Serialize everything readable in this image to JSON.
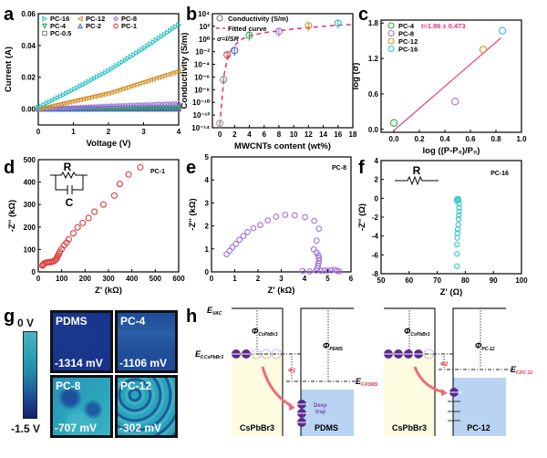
{
  "chart_data": [
    {
      "panel": "a",
      "type": "line",
      "title": "",
      "xlabel": "Voltage (V)",
      "ylabel": "Current (A)",
      "xlim": [
        0,
        4
      ],
      "ylim": [
        -0.01,
        0.06
      ],
      "xticks": [
        "0",
        "1",
        "2",
        "3",
        "4"
      ],
      "yticks": [
        "0.00",
        "0.02",
        "0.04",
        "0.06"
      ],
      "legend": "top-left",
      "series": [
        {
          "name": "PC-16",
          "marker": "triangle-right",
          "color": "#2ec4c4",
          "x": [
            0,
            1,
            2,
            3,
            4
          ],
          "y": [
            0.001,
            0.012,
            0.024,
            0.038,
            0.053
          ]
        },
        {
          "name": "PC-12",
          "marker": "triangle-left",
          "color": "#d4922a",
          "x": [
            0,
            1,
            2,
            3,
            4
          ],
          "y": [
            0.0,
            0.005,
            0.01,
            0.017,
            0.024
          ]
        },
        {
          "name": "PC-8",
          "marker": "diamond",
          "color": "#a070e0",
          "x": [
            0,
            1,
            2,
            3,
            4
          ],
          "y": [
            0.0,
            0.001,
            0.002,
            0.0028,
            0.0035
          ]
        },
        {
          "name": "PC-4",
          "marker": "triangle-down",
          "color": "#2aa84a",
          "x": [
            0,
            1,
            2,
            3,
            4
          ],
          "y": [
            0.0,
            0.0003,
            0.0006,
            0.0009,
            0.0012
          ]
        },
        {
          "name": "PC-2",
          "marker": "triangle-up",
          "color": "#3a6ee0",
          "x": [
            0,
            1,
            2,
            3,
            4
          ],
          "y": [
            0.0,
            0.0001,
            0.0002,
            0.0003,
            0.0004
          ]
        },
        {
          "name": "PC-1",
          "marker": "circle",
          "color": "#e03a3a",
          "x": [
            0,
            1,
            2,
            3,
            4
          ],
          "y": [
            0.0,
            0.0,
            0.0,
            0.0,
            0.0001
          ]
        },
        {
          "name": "PC-0.5",
          "marker": "square",
          "color": "#888888",
          "x": [
            0,
            1,
            2,
            3,
            4
          ],
          "y": [
            0.0,
            0.0,
            0.0,
            0.0,
            0.0
          ]
        }
      ]
    },
    {
      "panel": "b",
      "type": "scatter",
      "xlabel": "MWCNTs content (wt%)",
      "ylabel": "Conductivity (S/m)",
      "xlim": [
        -1,
        18
      ],
      "ylim_log10": [
        -14,
        4
      ],
      "xticks": [
        "0",
        "2",
        "4",
        "6",
        "8",
        "10",
        "12",
        "14",
        "16",
        "18"
      ],
      "yticks": [
        "10⁻¹⁴",
        "10⁻¹²",
        "10⁻¹⁰",
        "10⁻⁸",
        "10⁻⁶",
        "10⁻⁴",
        "10⁻²",
        "10⁰",
        "10²",
        "10⁴"
      ],
      "legend": "top-left",
      "legend_entries": [
        "Conductivity (S/m)",
        "Fitted curve"
      ],
      "annotation": "σ=l/SR",
      "points": [
        {
          "x": 0,
          "log10_y": -13.3,
          "color": "#999999"
        },
        {
          "x": 0.5,
          "log10_y": -6.4,
          "color": "#888888"
        },
        {
          "x": 1,
          "log10_y": -2.5,
          "color": "#e03a3a"
        },
        {
          "x": 2,
          "log10_y": -1.8,
          "color": "#3a6ee0"
        },
        {
          "x": 4,
          "log10_y": 0.6,
          "color": "#2aa84a"
        },
        {
          "x": 8,
          "log10_y": 1.2,
          "color": "#a070e0"
        },
        {
          "x": 12,
          "log10_y": 2.1,
          "color": "#d4922a"
        },
        {
          "x": 16,
          "log10_y": 2.5,
          "color": "#2ec4c4"
        }
      ],
      "fit": {
        "color": "#e83a7a",
        "x": [
          0,
          0.3,
          0.6,
          1,
          1.5,
          2,
          3,
          4,
          6,
          8,
          10,
          12,
          14,
          16,
          18
        ],
        "log10_y": [
          -13.5,
          -9.5,
          -5.5,
          -3.2,
          -1.8,
          -1.0,
          0.0,
          0.5,
          1.0,
          1.3,
          1.6,
          1.8,
          2.0,
          2.2,
          2.3
        ]
      }
    },
    {
      "panel": "c",
      "type": "scatter",
      "xlabel": "log ((P-P0)/P0)",
      "ylabel": "log (σ)",
      "xlim": [
        -0.1,
        1.0
      ],
      "ylim": [
        -0.05,
        1.85
      ],
      "xticks": [
        "0.0",
        "0.2",
        "0.4",
        "0.6",
        "0.8",
        "1.0"
      ],
      "yticks": [
        "0.0",
        "0.6",
        "1.2",
        "1.8"
      ],
      "legend": "top-left",
      "annotation": "t=1.86 ± 0.473",
      "points": [
        {
          "name": "PC-4",
          "x": 0.0,
          "y": 0.11,
          "color": "#2aa84a"
        },
        {
          "name": "PC-8",
          "x": 0.48,
          "y": 0.47,
          "color": "#a070e0"
        },
        {
          "name": "PC-12",
          "x": 0.7,
          "y": 1.35,
          "color": "#d4922a"
        },
        {
          "name": "PC-16",
          "x": 0.85,
          "y": 1.67,
          "color": "#2ec4c4"
        }
      ],
      "fit": {
        "color": "#e83a7a",
        "x": [
          0.0,
          0.84
        ],
        "y": [
          -0.02,
          1.55
        ]
      }
    },
    {
      "panel": "d",
      "type": "scatter",
      "xlabel": "Z' (kΩ)",
      "ylabel": "-Z'' (kΩ)",
      "xlim": [
        0,
        600
      ],
      "ylim": [
        0,
        500
      ],
      "xticks": [
        "0",
        "100",
        "200",
        "300",
        "400",
        "500",
        "600"
      ],
      "yticks": [
        "0",
        "100",
        "200",
        "300",
        "400",
        "500"
      ],
      "sample": "PC-1",
      "circuit": {
        "R": "R",
        "C": "C"
      },
      "color": "#e03a3a",
      "points": [
        [
          18,
          28
        ],
        [
          20,
          32
        ],
        [
          24,
          36
        ],
        [
          30,
          40
        ],
        [
          38,
          42
        ],
        [
          46,
          43
        ],
        [
          54,
          44
        ],
        [
          62,
          46
        ],
        [
          70,
          50
        ],
        [
          76,
          56
        ],
        [
          80,
          64
        ],
        [
          84,
          72
        ],
        [
          88,
          80
        ],
        [
          92,
          90
        ],
        [
          100,
          102
        ],
        [
          110,
          118
        ],
        [
          120,
          130
        ],
        [
          130,
          145
        ],
        [
          150,
          172
        ],
        [
          168,
          198
        ],
        [
          190,
          218
        ],
        [
          215,
          240
        ],
        [
          240,
          268
        ],
        [
          278,
          300
        ],
        [
          325,
          340
        ],
        [
          348,
          392
        ],
        [
          386,
          434
        ],
        [
          436,
          466
        ]
      ]
    },
    {
      "panel": "e",
      "type": "scatter",
      "xlabel": "Z' (kΩ)",
      "ylabel": "-Z'' (kΩ)",
      "xlim": [
        0,
        6
      ],
      "ylim": [
        0,
        5
      ],
      "xticks": [
        "0",
        "1",
        "2",
        "3",
        "4",
        "5",
        "6"
      ],
      "yticks": [
        "0",
        "1",
        "2",
        "3",
        "4",
        "5"
      ],
      "sample": "PC-8",
      "color": "#a070e0",
      "points": [
        [
          0.65,
          0.77
        ],
        [
          0.78,
          0.92
        ],
        [
          0.9,
          1.07
        ],
        [
          1.05,
          1.22
        ],
        [
          1.2,
          1.4
        ],
        [
          1.37,
          1.56
        ],
        [
          1.55,
          1.73
        ],
        [
          1.8,
          1.9
        ],
        [
          2.1,
          2.04
        ],
        [
          2.42,
          2.24
        ],
        [
          2.78,
          2.4
        ],
        [
          3.17,
          2.48
        ],
        [
          3.58,
          2.46
        ],
        [
          4.02,
          2.38
        ],
        [
          4.42,
          2.22
        ],
        [
          4.62,
          1.88
        ],
        [
          4.52,
          1.36
        ],
        [
          4.4,
          0.98
        ],
        [
          4.52,
          0.84
        ],
        [
          4.6,
          0.72
        ],
        [
          4.62,
          0.6
        ],
        [
          4.62,
          0.48
        ],
        [
          4.6,
          0.36
        ],
        [
          4.58,
          0.25
        ],
        [
          4.55,
          0.15
        ],
        [
          4.5,
          0.06
        ],
        [
          3.92,
          0.04
        ],
        [
          4.22,
          0.02
        ],
        [
          4.7,
          0.05
        ],
        [
          4.85,
          0.06
        ],
        [
          5.0,
          0.06
        ],
        [
          5.15,
          0.07
        ],
        [
          5.3,
          0.09
        ],
        [
          5.4,
          0.05
        ],
        [
          5.5,
          0.02
        ]
      ]
    },
    {
      "panel": "f",
      "type": "scatter",
      "xlabel": "Z' (Ω)",
      "ylabel": "-Z'' (Ω)",
      "xlim": [
        50,
        100
      ],
      "ylim": [
        -8,
        4
      ],
      "xticks": [
        "50",
        "60",
        "70",
        "80",
        "90",
        "100"
      ],
      "yticks": [
        "-8",
        "-6",
        "-4",
        "-2",
        "0",
        "2",
        "4"
      ],
      "sample": "PC-16",
      "circuit": {
        "R": "R"
      },
      "color": "#2ec4c4",
      "points": [
        [
          77.0,
          -7.2
        ],
        [
          77.0,
          -5.9
        ],
        [
          77.0,
          -4.9
        ],
        [
          77.1,
          -4.2
        ],
        [
          77.2,
          -3.7
        ],
        [
          77.3,
          -3.3
        ],
        [
          77.5,
          -2.8
        ],
        [
          77.6,
          -2.2
        ],
        [
          77.7,
          -1.8
        ],
        [
          77.8,
          -1.4
        ],
        [
          77.8,
          -1.0
        ],
        [
          77.8,
          -0.6
        ],
        [
          77.6,
          -0.2
        ],
        [
          77.5,
          -0.05
        ],
        [
          77.0,
          -0.1
        ],
        [
          76.9,
          -0.3
        ]
      ]
    }
  ],
  "panel_labels": [
    "a",
    "b",
    "c",
    "d",
    "e",
    "f",
    "g",
    "h"
  ],
  "panel_g": {
    "colorbar": {
      "max_label": "0 V",
      "min_label": "-1.5 V"
    },
    "maps": [
      {
        "name": "PDMS",
        "potential": "-1314 mV"
      },
      {
        "name": "PC-4",
        "potential": "-1106 mV"
      },
      {
        "name": "PC-8",
        "potential": "-707 mV"
      },
      {
        "name": "PC-12",
        "potential": "-302 mV"
      }
    ]
  },
  "panel_h": {
    "evac": "E",
    "evac_sub": "VAC",
    "ef_left": "E",
    "ef_left_sub": "F,CsPbBr3",
    "phi": "Φ",
    "phi_cspbbr3_sub": "CsPbBr3",
    "phi_pdms_sub": "PDMS",
    "phi_pc12_sub": "PC-12",
    "phi1": "Φ1",
    "phi2": "Φ2",
    "ef_pdms": "E",
    "ef_pdms_sub": "F,PDMS",
    "ef_pc12": "E",
    "ef_pc12_sub": "F,PC-12",
    "deep_trap_1": "Deep",
    "deep_trap_2": "trap",
    "block_cspbbr3": "CsPbBr3",
    "block_pdms": "PDMS",
    "block_pc12": "PC-12",
    "colors": {
      "perovskite": "#fdfbe0",
      "dielectric": "#b8d4f2",
      "electron": "#5b2a91",
      "accent_red": "#e8303a",
      "arrow": "#ee6a78"
    }
  }
}
